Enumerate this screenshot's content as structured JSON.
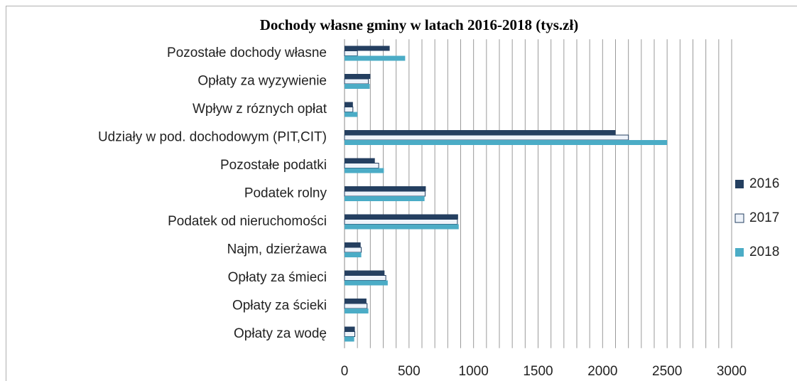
{
  "chart_data": {
    "type": "bar",
    "orientation": "horizontal",
    "title": "Dochody własne gminy w latach 2016-2018 (tys.zł)",
    "categories": [
      "Opłaty za wodę",
      "Opłaty za ścieki",
      "Opłaty za  śmieci",
      "Najm, dzierżawa",
      "Podatek od nieruchomości",
      "Podatek rolny",
      "Pozostałe podatki ",
      "Udziały w pod. dochodowym (PIT,CIT)",
      "Wpływ z róznych opłat",
      "Opłaty za wyzywienie ",
      "Pozostałe dochody  własne"
    ],
    "series": [
      {
        "name": "2016",
        "color": "#243f60",
        "values": [
          80,
          170,
          310,
          125,
          880,
          630,
          235,
          2100,
          65,
          200,
          350
        ]
      },
      {
        "name": "2017",
        "color": "#eef3fa",
        "values": [
          80,
          175,
          320,
          130,
          875,
          625,
          265,
          2200,
          65,
          185,
          100
        ]
      },
      {
        "name": "2018",
        "color": "#4bacc6",
        "values": [
          75,
          185,
          335,
          130,
          885,
          620,
          305,
          2500,
          100,
          195,
          470
        ]
      }
    ],
    "xlim": [
      0,
      3000
    ],
    "xticks": [
      0,
      500,
      1000,
      1500,
      2000,
      2500,
      3000
    ],
    "x_minor_ticks": [
      0,
      100,
      200,
      300,
      400,
      500,
      600,
      700,
      800,
      900,
      1000,
      1100,
      1200,
      1300,
      1400,
      1500,
      1600,
      1700,
      1800,
      1900,
      2000,
      2100,
      2200,
      2300,
      2400,
      2500,
      2600,
      2700,
      2800,
      2900,
      3000
    ],
    "grid": true,
    "legend": "right"
  }
}
